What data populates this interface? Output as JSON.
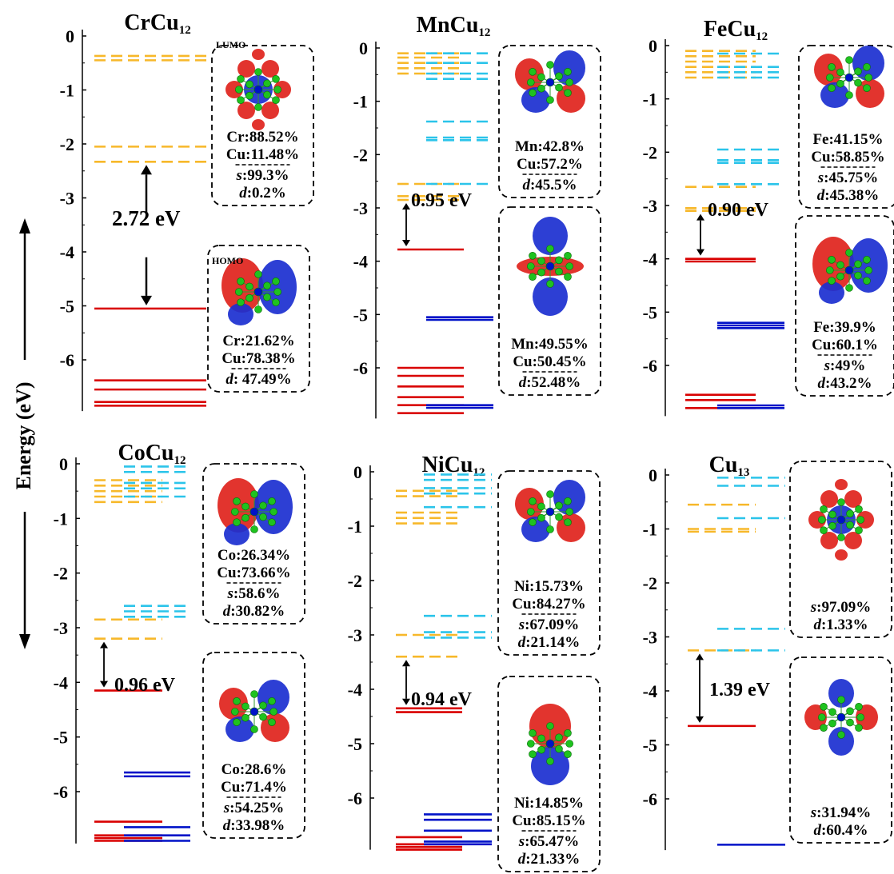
{
  "y_axis_label": "Energy (eV)",
  "tick_labels": [
    "0",
    "-1",
    "-2",
    "-3",
    "-4",
    "-5",
    "-6"
  ],
  "colors": {
    "occupied_up": "#d90000",
    "occupied_down": "#0012c8",
    "unoccupied_up": "#f7b82a",
    "unoccupied_down": "#2bc4ea",
    "lobe_red": "#e0231c",
    "lobe_blue": "#1b2fd0",
    "atom_green": "#1fc21f"
  },
  "panels": [
    {
      "id": "cr",
      "title_base": "CrCu",
      "title_sub": "12",
      "gap_label": "2.72 eV",
      "lumo_tag": "LUMO",
      "homo_tag": "HOMO",
      "upper_box": [
        "Cr:88.52%",
        "Cu:11.48%",
        "s:99.3%",
        "d:0.2%"
      ],
      "lower_box": [
        "Cr:21.62%",
        "Cu:78.38%",
        "d: 47.49%"
      ],
      "unocc_up": [
        -0.37,
        -0.45,
        -2.05,
        -2.33
      ],
      "unocc_down": [],
      "occ_up": [
        -5.05,
        -6.38,
        -6.55,
        -6.78,
        -6.85
      ],
      "occ_down": []
    },
    {
      "id": "mn",
      "title_base": "MnCu",
      "title_sub": "12",
      "gap_label": "0.95 eV",
      "upper_box": [
        "Mn:42.8%",
        "Cu:57.2%",
        "d:45.5%"
      ],
      "lower_box": [
        "Mn:49.55%",
        "Cu:50.45%",
        "d:52.48%"
      ],
      "unocc_up": [
        -0.1,
        -0.18,
        -0.28,
        -0.38,
        -0.48,
        -2.55,
        -2.78,
        -2.85
      ],
      "unocc_down": [
        -0.1,
        -0.28,
        -0.48,
        -0.58,
        -1.38,
        -1.68,
        -1.73,
        -2.55
      ],
      "occ_up": [
        -3.78,
        -6.0,
        -6.15,
        -6.35,
        -6.55,
        -6.7,
        -6.85
      ],
      "occ_down": [
        -5.05,
        -5.1,
        -6.7,
        -6.75
      ]
    },
    {
      "id": "fe",
      "title_base": "FeCu",
      "title_sub": "12",
      "gap_label": "0.90 eV",
      "upper_box": [
        "Fe:41.15%",
        "Cu:58.85%",
        "s:45.75%",
        "d:45.38%"
      ],
      "lower_box": [
        "Fe:39.9%",
        "Cu:60.1%",
        "s:49%",
        "d:43.2%"
      ],
      "unocc_up": [
        -0.1,
        -0.2,
        -0.3,
        -0.4,
        -0.5,
        -0.6,
        -2.65,
        -3.05,
        -3.1
      ],
      "unocc_down": [
        -0.15,
        -0.4,
        -0.5,
        -0.6,
        -1.95,
        -2.15,
        -2.2,
        -2.6
      ],
      "occ_up": [
        -4.0,
        -4.05,
        -6.55,
        -6.65,
        -6.8
      ],
      "occ_down": [
        -5.2,
        -5.25,
        -5.3,
        -6.75,
        -6.8
      ]
    },
    {
      "id": "co",
      "title_base": "CoCu",
      "title_sub": "12",
      "gap_label": "0.96 eV",
      "upper_box": [
        "Co:26.34%",
        "Cu:73.66%",
        "s:58.6%",
        "d:30.82%"
      ],
      "lower_box": [
        "Co:28.6%",
        "Cu:71.4%",
        "s:54.25%",
        "d:33.98%"
      ],
      "unocc_up": [
        -0.3,
        -0.4,
        -0.5,
        -0.6,
        -0.7,
        -2.85,
        -3.2
      ],
      "unocc_down": [
        -0.05,
        -0.15,
        -0.35,
        -0.45,
        -0.6,
        -2.6,
        -2.7,
        -2.8
      ],
      "occ_up": [
        -4.15,
        -6.55,
        -6.8,
        -6.85,
        -6.9
      ],
      "occ_down": [
        -5.65,
        -5.72,
        -6.65,
        -6.8,
        -6.9
      ]
    },
    {
      "id": "ni",
      "title_base": "NiCu",
      "title_sub": "12",
      "gap_label": "0.94 eV",
      "upper_box": [
        "Ni:15.73%",
        "Cu:84.27%",
        "s:67.09%",
        "d:21.14%"
      ],
      "lower_box": [
        "Ni:14.85%",
        "Cu:85.15%",
        "s:65.47%",
        "d:21.33%"
      ],
      "unocc_up": [
        -0.35,
        -0.45,
        -0.75,
        -0.85,
        -0.95,
        -3.0,
        -3.4
      ],
      "unocc_down": [
        -0.05,
        -0.15,
        -0.3,
        -0.4,
        -0.65,
        -2.65,
        -2.95,
        -3.05
      ],
      "occ_up": [
        -4.35,
        -4.42,
        -6.72,
        -6.85,
        -6.9,
        -6.95
      ],
      "occ_down": [
        -6.3,
        -6.4,
        -6.6,
        -6.8,
        -6.85
      ]
    },
    {
      "id": "cu",
      "title_base": "Cu",
      "title_sub": "13",
      "gap_label": "1.39 eV",
      "upper_box": [
        "s:97.09%",
        "d:1.33%"
      ],
      "lower_box": [
        "s:31.94%",
        "d:60.4%"
      ],
      "unocc_up": [
        -0.55,
        -1.0,
        -1.05,
        -3.25
      ],
      "unocc_down": [
        -0.05,
        -0.2,
        -0.8,
        -2.85,
        -3.25
      ],
      "occ_up": [
        -4.65
      ],
      "occ_down": [
        -6.85
      ]
    }
  ]
}
